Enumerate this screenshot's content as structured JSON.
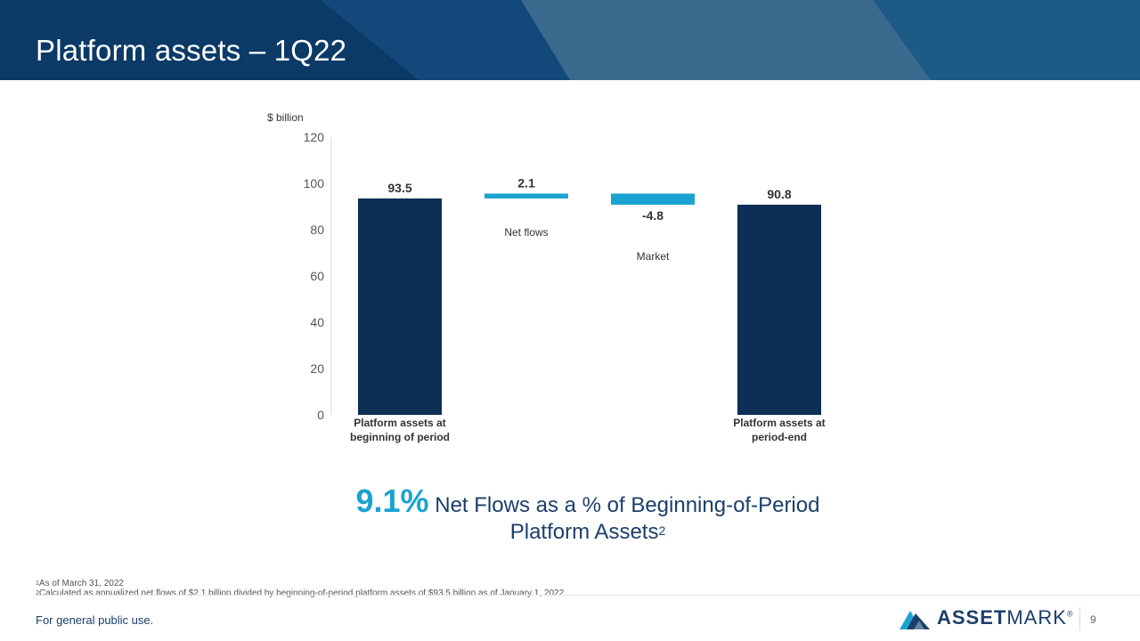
{
  "slide": {
    "title": "Platform assets – 1Q22"
  },
  "colors": {
    "header_dark": "#0b3a66",
    "header_mid": "#1e5a86",
    "header_light": "#3a6a8e",
    "bar_dark": "#0d2f55",
    "bar_light": "#1aa3d1",
    "accent_text": "#1b3f6b"
  },
  "chart_data": {
    "type": "bar",
    "subtype": "waterfall",
    "unit_label": "$ billion",
    "ylim": [
      0,
      120
    ],
    "yticks": [
      0,
      20,
      40,
      60,
      80,
      100,
      120
    ],
    "grid": false,
    "bars": [
      {
        "category": "Platform assets at beginning of period",
        "kind": "total",
        "start": 0,
        "end": 93.5,
        "value_label": "93.5",
        "tick_lines": [
          "Platform assets at",
          "beginning of period"
        ],
        "annotation": ""
      },
      {
        "category": "Net flows",
        "kind": "delta",
        "start": 93.5,
        "end": 95.6,
        "value_label": "2.1",
        "tick_lines": [],
        "annotation": "Net flows"
      },
      {
        "category": "Market",
        "kind": "delta",
        "start": 95.6,
        "end": 90.8,
        "value_label": "-4.8",
        "tick_lines": [],
        "annotation": "Market"
      },
      {
        "category": "Platform assets at period-end",
        "kind": "total",
        "start": 0,
        "end": 90.8,
        "value_label": "90.8",
        "tick_lines": [
          "Platform assets at",
          "period-end"
        ],
        "annotation": ""
      }
    ]
  },
  "summary": {
    "percent": "9.1%",
    "line1": "Net Flows as a % of Beginning-of-Period",
    "line2": "Platform Assets",
    "footnote_ref": "2"
  },
  "footnotes": [
    {
      "mark": "1",
      "text": "As of March 31, 2022"
    },
    {
      "mark": "2",
      "text": "Calculated as annualized net flows of $2.1 billion divided by beginning-of-period platform assets of $93.5 billion as of January 1, 2022"
    }
  ],
  "footer": {
    "text": "For general public use.",
    "logo_bold": "ASSET",
    "logo_regular": "MARK",
    "logo_mark": "®",
    "page_number": "9"
  }
}
